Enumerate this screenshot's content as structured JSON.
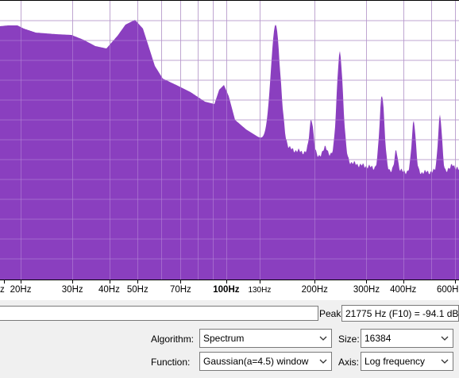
{
  "spectrum": {
    "fill_color": "#8a3fbf",
    "grid_color": "#c8c8c8",
    "x_axis_scale": "log",
    "x_range_hz": [
      17,
      620
    ],
    "x_ticks": [
      {
        "hz": 17.5,
        "label": "z",
        "style": "normal"
      },
      {
        "hz": 20,
        "label": "20Hz",
        "style": "normal"
      },
      {
        "hz": 30,
        "label": "30Hz",
        "style": "normal"
      },
      {
        "hz": 40,
        "label": "40Hz",
        "style": "normal"
      },
      {
        "hz": 50,
        "label": "50Hz",
        "style": "normal"
      },
      {
        "hz": 70,
        "label": "70Hz",
        "style": "normal"
      },
      {
        "hz": 100,
        "label": "100Hz",
        "style": "bold"
      },
      {
        "hz": 130,
        "label": "130Hz",
        "style": "small"
      },
      {
        "hz": 200,
        "label": "200Hz",
        "style": "normal"
      },
      {
        "hz": 300,
        "label": "300Hz",
        "style": "normal"
      },
      {
        "hz": 400,
        "label": "400Hz",
        "style": "normal"
      },
      {
        "hz": 600,
        "label": "600H",
        "style": "normal"
      }
    ]
  },
  "peak": {
    "label": "Peak:",
    "value": "21775 Hz (F10) = -94.1 dB"
  },
  "controls": {
    "algorithm_label": "Algorithm:",
    "algorithm_value": "Spectrum",
    "size_label": "Size:",
    "size_value": "16384",
    "function_label": "Function:",
    "function_value": "Gaussian(a=4.5) window",
    "axis_label": "Axis:",
    "axis_value": "Log frequency"
  }
}
